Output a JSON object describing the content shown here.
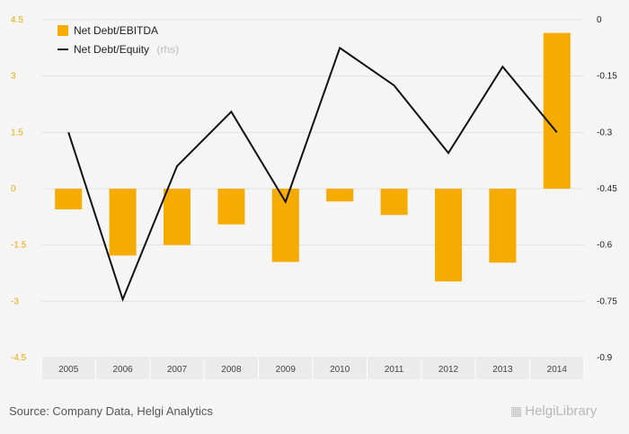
{
  "chart_data": {
    "type": "bar",
    "categories": [
      "2005",
      "2006",
      "2007",
      "2008",
      "2009",
      "2010",
      "2011",
      "2012",
      "2013",
      "2014"
    ],
    "series": [
      {
        "name": "Net Debt/EBITDA",
        "type": "bar",
        "axis": "left",
        "color": "#f5ab00",
        "values": [
          -0.55,
          -1.78,
          -1.5,
          -0.95,
          -1.95,
          -0.34,
          -0.7,
          -2.47,
          -1.97,
          4.15
        ]
      },
      {
        "name": "Net Debt/Equity",
        "type": "line",
        "axis": "right",
        "color": "#111111",
        "values": [
          -0.3,
          -0.745,
          -0.39,
          -0.245,
          -0.485,
          -0.075,
          -0.175,
          -0.355,
          -0.125,
          -0.3
        ]
      }
    ],
    "left_axis": {
      "min": -4.5,
      "max": 4.5,
      "ticks": [
        "4.5",
        "3",
        "1.5",
        "0",
        "-1.5",
        "-3",
        "-4.5"
      ]
    },
    "right_axis": {
      "min": -0.9,
      "max": 0,
      "ticks": [
        "0",
        "-0.15",
        "-0.3",
        "-0.45",
        "-0.6",
        "-0.75",
        "-0.9"
      ]
    },
    "legend": {
      "position": "top-left",
      "rhs_suffix": "(rhs)"
    },
    "grid": true
  },
  "source_text": "Source: Company Data, Helgi Analytics",
  "logo_text": "HelgiLibrary"
}
